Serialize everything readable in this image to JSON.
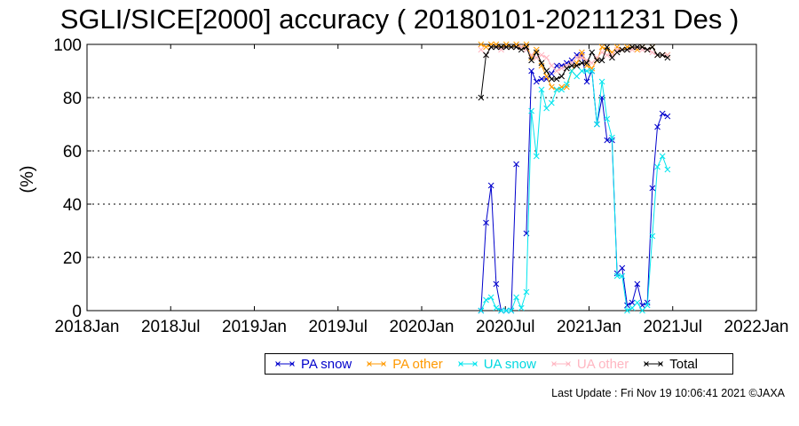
{
  "chart_data": {
    "type": "line",
    "title": "SGLI/SICE[2000] accuracy ( 20180101-20211231 Des )",
    "xlabel": "",
    "ylabel": "(%)",
    "x_ticks": [
      "2018Jan",
      "2018Jul",
      "2019Jan",
      "2019Jul",
      "2020Jan",
      "2020Jul",
      "2021Jan",
      "2021Jul",
      "2022Jan"
    ],
    "xlim": [
      "2018-01-01",
      "2022-01-01"
    ],
    "y_ticks": [
      0,
      20,
      40,
      60,
      80,
      100
    ],
    "ylim": [
      0,
      100
    ],
    "grid": "horizontal dotted",
    "legend_position": "bottom",
    "series": [
      {
        "name": "PA snow",
        "color": "#0000cc",
        "x": [
          "2020-05-10",
          "2020-05-21",
          "2020-06-01",
          "2020-06-12",
          "2020-06-23",
          "2020-07-04",
          "2020-07-15",
          "2020-07-26",
          "2020-08-06",
          "2020-08-17",
          "2020-08-28",
          "2020-09-08",
          "2020-09-19",
          "2020-09-30",
          "2020-10-11",
          "2020-10-22",
          "2020-11-02",
          "2020-11-13",
          "2020-11-24",
          "2020-12-05",
          "2020-12-16",
          "2020-12-27",
          "2021-01-07",
          "2021-01-18",
          "2021-01-29",
          "2021-02-09",
          "2021-02-20",
          "2021-03-03",
          "2021-03-14",
          "2021-03-25",
          "2021-04-05",
          "2021-04-16",
          "2021-04-27",
          "2021-05-08",
          "2021-05-19",
          "2021-05-30",
          "2021-06-10",
          "2021-06-21",
          "2021-07-02",
          "2021-07-13",
          "2021-07-24",
          "2021-08-04",
          "2021-08-15",
          "2021-08-26",
          "2021-09-06",
          "2021-09-17",
          "2021-09-28",
          "2021-10-09",
          "2021-10-20",
          "2021-10-31"
        ],
        "y": [
          0,
          33,
          47,
          10,
          0,
          0,
          0,
          55,
          null,
          29,
          90,
          86,
          87,
          87,
          89,
          92,
          92,
          93,
          94,
          96,
          96,
          86,
          90,
          70,
          80,
          64,
          64,
          14,
          16,
          2,
          3,
          10,
          2,
          3,
          46,
          69,
          74,
          73,
          null,
          null,
          null,
          null,
          null,
          null,
          null,
          null,
          null,
          null,
          null,
          null
        ]
      },
      {
        "name": "PA other",
        "color": "#ff9900",
        "x": [
          "2020-05-10",
          "2020-05-21",
          "2020-06-01",
          "2020-06-12",
          "2020-06-23",
          "2020-07-04",
          "2020-07-15",
          "2020-07-26",
          "2020-08-06",
          "2020-08-17",
          "2020-08-28",
          "2020-09-08",
          "2020-09-19",
          "2020-09-30",
          "2020-10-11",
          "2020-10-22",
          "2020-11-02",
          "2020-11-13",
          "2020-11-24",
          "2020-12-05",
          "2020-12-16",
          "2020-12-27",
          "2021-01-07",
          "2021-01-18",
          "2021-01-29",
          "2021-02-09",
          "2021-02-20",
          "2021-03-03",
          "2021-03-14",
          "2021-03-25",
          "2021-04-05",
          "2021-04-16",
          "2021-04-27",
          "2021-05-08",
          "2021-05-19",
          "2021-05-30",
          "2021-06-10",
          "2021-06-21",
          "2021-07-02",
          "2021-07-13",
          "2021-07-24",
          "2021-08-04",
          "2021-08-15",
          "2021-08-26",
          "2021-09-06",
          "2021-09-17",
          "2021-09-28",
          "2021-10-09",
          "2021-10-20",
          "2021-10-31"
        ],
        "y": [
          100,
          99,
          100,
          100,
          99,
          100,
          99,
          100,
          99,
          100,
          95,
          98,
          92,
          88,
          84,
          83,
          84,
          84,
          90,
          93,
          97,
          92,
          91,
          94,
          99,
          98,
          97,
          99,
          98,
          99,
          99,
          98,
          99,
          98,
          99,
          96,
          96,
          96,
          null,
          null,
          null,
          null,
          null,
          null,
          null,
          null,
          null,
          null,
          null,
          null
        ]
      },
      {
        "name": "UA snow",
        "color": "#00e5ee",
        "x": [
          "2020-05-10",
          "2020-05-21",
          "2020-06-01",
          "2020-06-12",
          "2020-06-23",
          "2020-07-04",
          "2020-07-15",
          "2020-07-26",
          "2020-08-06",
          "2020-08-17",
          "2020-08-28",
          "2020-09-08",
          "2020-09-19",
          "2020-09-30",
          "2020-10-11",
          "2020-10-22",
          "2020-11-02",
          "2020-11-13",
          "2020-11-24",
          "2020-12-05",
          "2020-12-16",
          "2020-12-27",
          "2021-01-07",
          "2021-01-18",
          "2021-01-29",
          "2021-02-09",
          "2021-02-20",
          "2021-03-03",
          "2021-03-14",
          "2021-03-25",
          "2021-04-05",
          "2021-04-16",
          "2021-04-27",
          "2021-05-08",
          "2021-05-19",
          "2021-05-30",
          "2021-06-10",
          "2021-06-21",
          "2021-07-02",
          "2021-07-13",
          "2021-07-24",
          "2021-08-04",
          "2021-08-15",
          "2021-08-26",
          "2021-09-06",
          "2021-09-17",
          "2021-09-28",
          "2021-10-09",
          "2021-10-20",
          "2021-10-31"
        ],
        "y": [
          0,
          4,
          5,
          1,
          0,
          0,
          0,
          5,
          1,
          7,
          75,
          58,
          83,
          76,
          78,
          83,
          83,
          85,
          90,
          88,
          90,
          90,
          90,
          70,
          86,
          72,
          65,
          13,
          13,
          0,
          1,
          3,
          0,
          2,
          28,
          54,
          58,
          53,
          null,
          null,
          null,
          null,
          null,
          null,
          null,
          null,
          null,
          null,
          null,
          null
        ]
      },
      {
        "name": "UA other",
        "color": "#ffb6c1",
        "x": [
          "2020-05-10",
          "2020-05-21",
          "2020-06-01",
          "2020-06-12",
          "2020-06-23",
          "2020-07-04",
          "2020-07-15",
          "2020-07-26",
          "2020-08-06",
          "2020-08-17",
          "2020-08-28",
          "2020-09-08",
          "2020-09-19",
          "2020-09-30",
          "2020-10-11",
          "2020-10-22",
          "2020-11-02",
          "2020-11-13",
          "2020-11-24",
          "2020-12-05",
          "2020-12-16",
          "2020-12-27",
          "2021-01-07",
          "2021-01-18",
          "2021-01-29",
          "2021-02-09",
          "2021-02-20",
          "2021-03-03",
          "2021-03-14",
          "2021-03-25",
          "2021-04-05",
          "2021-04-16",
          "2021-04-27",
          "2021-05-08",
          "2021-05-19",
          "2021-05-30",
          "2021-06-10",
          "2021-06-21",
          "2021-07-02",
          "2021-07-13",
          "2021-07-24",
          "2021-08-04",
          "2021-08-15",
          "2021-08-26",
          "2021-09-06",
          "2021-09-17",
          "2021-09-28",
          "2021-10-09",
          "2021-10-20",
          "2021-10-31"
        ],
        "y": [
          98,
          96,
          99,
          99,
          98,
          99,
          99,
          99,
          99,
          98,
          96,
          95,
          96,
          95,
          92,
          90,
          91,
          92,
          93,
          95,
          95,
          94,
          93,
          95,
          97,
          96,
          96,
          98,
          98,
          98,
          98,
          99,
          98,
          98,
          97,
          96,
          96,
          96,
          null,
          null,
          null,
          null,
          null,
          null,
          null,
          null,
          null,
          null,
          null,
          null
        ]
      },
      {
        "name": "Total",
        "color": "#000000",
        "x": [
          "2020-05-10",
          "2020-05-21",
          "2020-06-01",
          "2020-06-12",
          "2020-06-23",
          "2020-07-04",
          "2020-07-15",
          "2020-07-26",
          "2020-08-06",
          "2020-08-17",
          "2020-08-28",
          "2020-09-08",
          "2020-09-19",
          "2020-09-30",
          "2020-10-11",
          "2020-10-22",
          "2020-11-02",
          "2020-11-13",
          "2020-11-24",
          "2020-12-05",
          "2020-12-16",
          "2020-12-27",
          "2021-01-07",
          "2021-01-18",
          "2021-01-29",
          "2021-02-09",
          "2021-02-20",
          "2021-03-03",
          "2021-03-14",
          "2021-03-25",
          "2021-04-05",
          "2021-04-16",
          "2021-04-27",
          "2021-05-08",
          "2021-05-19",
          "2021-05-30",
          "2021-06-10",
          "2021-06-21",
          "2021-07-02",
          "2021-07-13",
          "2021-07-24",
          "2021-08-04",
          "2021-08-15",
          "2021-08-26",
          "2021-09-06",
          "2021-09-17",
          "2021-09-28",
          "2021-10-09",
          "2021-10-20",
          "2021-10-31"
        ],
        "y": [
          80,
          96,
          99,
          99,
          99,
          99,
          99,
          99,
          98,
          99,
          94,
          97,
          93,
          90,
          87,
          87,
          88,
          91,
          92,
          92,
          93,
          93,
          97,
          94,
          94,
          99,
          95,
          97,
          98,
          98,
          99,
          99,
          99,
          98,
          99,
          96,
          96,
          95,
          null,
          null,
          null,
          null,
          null,
          null,
          null,
          null,
          null,
          null,
          null,
          null
        ]
      }
    ]
  },
  "legend": {
    "items": [
      {
        "label": "PA snow",
        "color": "#0000cc"
      },
      {
        "label": "PA other",
        "color": "#ff9900"
      },
      {
        "label": "UA snow",
        "color": "#00e5ee"
      },
      {
        "label": "UA other",
        "color": "#ffb6c1"
      },
      {
        "label": "Total",
        "color": "#000000"
      }
    ]
  },
  "footer": {
    "last_update": "Last Update : Fri Nov 19 10:06:41 2021  ©JAXA"
  }
}
